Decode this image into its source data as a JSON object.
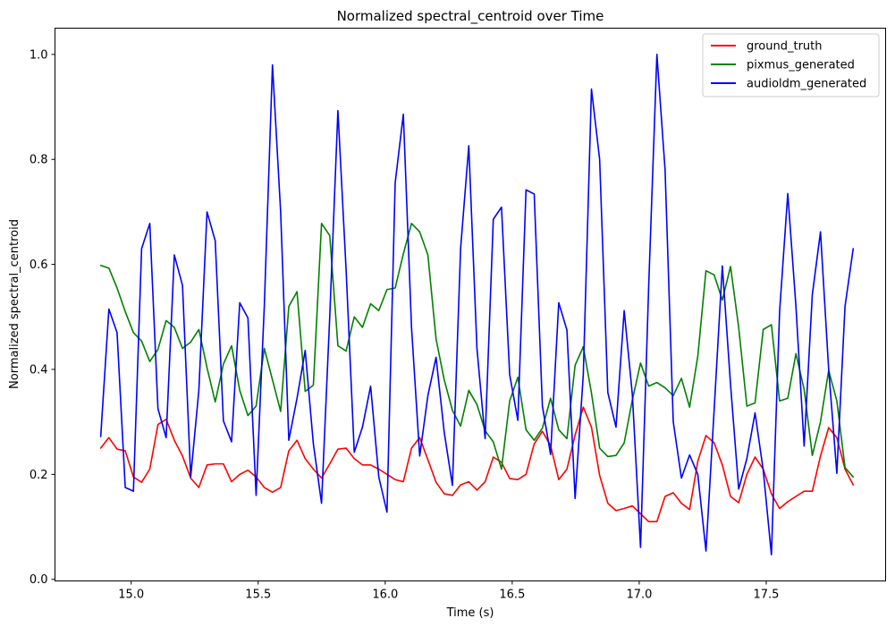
{
  "chart_data": {
    "type": "line",
    "title": "Normalized spectral_centroid over Time",
    "xlabel": "Time (s)",
    "ylabel": "Normalized spectral_centroid",
    "xlim": [
      14.7,
      17.97
    ],
    "ylim": [
      -0.003,
      1.05
    ],
    "xticks": [
      15.0,
      15.5,
      16.0,
      16.5,
      17.0,
      17.5
    ],
    "xtick_labels": [
      "15.0",
      "15.5",
      "16.0",
      "16.5",
      "17.0",
      "17.5"
    ],
    "yticks": [
      0.0,
      0.2,
      0.4,
      0.6,
      0.8,
      1.0
    ],
    "ytick_labels": [
      "0.0",
      "0.2",
      "0.4",
      "0.6",
      "0.8",
      "1.0"
    ],
    "grid": false,
    "legend_position": "top-right",
    "x_start": 14.88,
    "x_step": 0.0322,
    "series": [
      {
        "name": "ground_truth",
        "color": "#ff0000",
        "values": [
          0.25,
          0.27,
          0.248,
          0.245,
          0.195,
          0.185,
          0.21,
          0.295,
          0.305,
          0.265,
          0.235,
          0.193,
          0.175,
          0.218,
          0.22,
          0.22,
          0.186,
          0.2,
          0.208,
          0.195,
          0.175,
          0.166,
          0.175,
          0.245,
          0.265,
          0.23,
          0.21,
          0.193,
          0.22,
          0.248,
          0.25,
          0.23,
          0.218,
          0.218,
          0.21,
          0.2,
          0.19,
          0.186,
          0.25,
          0.27,
          0.228,
          0.185,
          0.163,
          0.16,
          0.18,
          0.186,
          0.17,
          0.186,
          0.233,
          0.223,
          0.192,
          0.19,
          0.2,
          0.258,
          0.282,
          0.255,
          0.19,
          0.21,
          0.275,
          0.328,
          0.29,
          0.198,
          0.145,
          0.131,
          0.135,
          0.14,
          0.125,
          0.11,
          0.11,
          0.158,
          0.165,
          0.145,
          0.133,
          0.225,
          0.274,
          0.26,
          0.218,
          0.158,
          0.146,
          0.2,
          0.233,
          0.21,
          0.163,
          0.135,
          0.148,
          0.158,
          0.168,
          0.168,
          0.235,
          0.289,
          0.27,
          0.21,
          0.18
        ]
      },
      {
        "name": "pixmus_generated",
        "color": "#008000",
        "values": [
          0.598,
          0.593,
          0.555,
          0.51,
          0.47,
          0.454,
          0.415,
          0.438,
          0.493,
          0.48,
          0.44,
          0.452,
          0.476,
          0.403,
          0.338,
          0.41,
          0.445,
          0.36,
          0.312,
          0.33,
          0.44,
          0.38,
          0.32,
          0.52,
          0.548,
          0.358,
          0.37,
          0.678,
          0.655,
          0.445,
          0.435,
          0.5,
          0.48,
          0.525,
          0.512,
          0.552,
          0.555,
          0.62,
          0.678,
          0.662,
          0.618,
          0.458,
          0.38,
          0.322,
          0.292,
          0.36,
          0.333,
          0.283,
          0.262,
          0.21,
          0.34,
          0.385,
          0.285,
          0.265,
          0.288,
          0.345,
          0.285,
          0.268,
          0.408,
          0.443,
          0.355,
          0.25,
          0.234,
          0.236,
          0.26,
          0.342,
          0.412,
          0.368,
          0.375,
          0.365,
          0.35,
          0.383,
          0.328,
          0.425,
          0.588,
          0.58,
          0.532,
          0.596,
          0.48,
          0.33,
          0.336,
          0.476,
          0.485,
          0.34,
          0.345,
          0.43,
          0.362,
          0.236,
          0.3,
          0.398,
          0.34,
          0.213,
          0.195
        ]
      },
      {
        "name": "audioldm_generated",
        "color": "#0000ff",
        "values": [
          0.272,
          0.515,
          0.47,
          0.175,
          0.168,
          0.63,
          0.678,
          0.325,
          0.27,
          0.618,
          0.56,
          0.195,
          0.36,
          0.7,
          0.645,
          0.302,
          0.262,
          0.527,
          0.498,
          0.16,
          0.52,
          0.98,
          0.7,
          0.265,
          0.345,
          0.436,
          0.258,
          0.145,
          0.5,
          0.893,
          0.59,
          0.242,
          0.29,
          0.368,
          0.195,
          0.128,
          0.755,
          0.886,
          0.48,
          0.235,
          0.35,
          0.423,
          0.28,
          0.179,
          0.63,
          0.826,
          0.44,
          0.268,
          0.686,
          0.709,
          0.39,
          0.303,
          0.742,
          0.734,
          0.33,
          0.238,
          0.527,
          0.475,
          0.154,
          0.39,
          0.934,
          0.8,
          0.356,
          0.29,
          0.512,
          0.352,
          0.061,
          0.56,
          1.0,
          0.78,
          0.3,
          0.193,
          0.237,
          0.2,
          0.054,
          0.323,
          0.597,
          0.372,
          0.172,
          0.23,
          0.317,
          0.208,
          0.047,
          0.51,
          0.735,
          0.52,
          0.254,
          0.542,
          0.662,
          0.4,
          0.202,
          0.52,
          0.63
        ]
      }
    ]
  }
}
